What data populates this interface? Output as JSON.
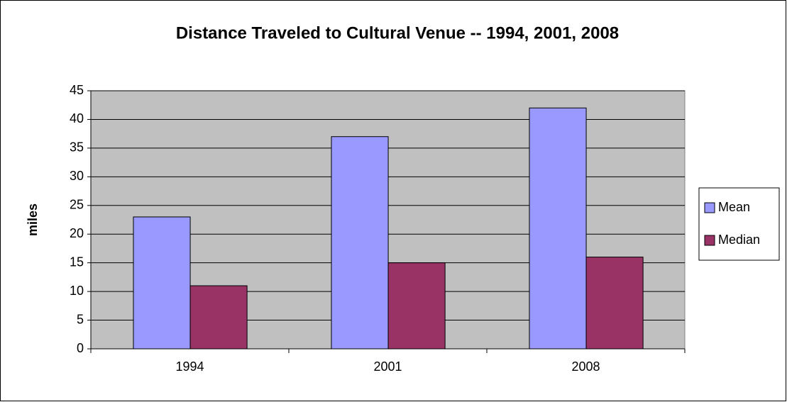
{
  "chart_data": {
    "type": "bar",
    "title": "Distance Traveled to Cultural Venue -- 1994, 2001, 2008",
    "y_label": "miles",
    "categories": [
      "1994",
      "2001",
      "2008"
    ],
    "series": [
      {
        "name": "Mean",
        "color": "#9999ff",
        "values": [
          23,
          37,
          42
        ]
      },
      {
        "name": "Median",
        "color": "#993366",
        "values": [
          11,
          15,
          16
        ]
      }
    ],
    "ylim": [
      0,
      45
    ],
    "yticks": [
      0,
      5,
      10,
      15,
      20,
      25,
      30,
      35,
      40,
      45
    ],
    "grid": true,
    "plot_background": "#c0c0c0",
    "legend": "right"
  }
}
